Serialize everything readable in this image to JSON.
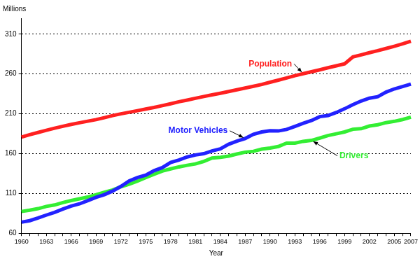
{
  "chart_data": {
    "type": "line",
    "y_label": "Millions",
    "x_label": "Year",
    "categories": [
      "1960",
      null,
      null,
      "1963",
      null,
      null,
      "1966",
      null,
      null,
      "1969",
      null,
      null,
      "1972",
      null,
      null,
      "1975",
      null,
      null,
      "1978",
      null,
      null,
      "1981",
      null,
      null,
      "1984",
      null,
      null,
      "1987",
      null,
      null,
      "1990",
      null,
      null,
      "1993",
      null,
      null,
      "1996",
      null,
      null,
      "1999",
      null,
      null,
      "2002",
      null,
      null,
      "2005",
      null,
      "2007"
    ],
    "series": [
      {
        "name": "Population",
        "color": "#ff2020",
        "values": [
          180.7,
          183.7,
          186.5,
          189.2,
          191.9,
          194.3,
          196.6,
          198.7,
          200.7,
          202.7,
          205.1,
          207.7,
          209.9,
          211.9,
          213.9,
          216.0,
          218.0,
          220.2,
          222.6,
          225.1,
          227.2,
          229.5,
          231.7,
          233.8,
          235.8,
          237.9,
          240.1,
          242.3,
          244.5,
          246.8,
          249.6,
          252.2,
          255.0,
          257.8,
          260.3,
          262.8,
          265.2,
          267.8,
          270.2,
          272.7,
          281.4,
          284.0,
          286.7,
          289.2,
          292.0,
          294.8,
          297.8,
          301.1
        ]
      },
      {
        "name": "Motor Vehicles",
        "color": "#2222ff",
        "values": [
          73.9,
          75.8,
          79.1,
          82.8,
          86.3,
          90.4,
          94.2,
          96.9,
          101.0,
          105.1,
          108.4,
          113.0,
          118.8,
          125.7,
          129.9,
          132.9,
          138.5,
          142.4,
          148.8,
          151.9,
          155.8,
          158.3,
          159.9,
          163.3,
          166.0,
          171.7,
          175.7,
          179.0,
          184.3,
          187.2,
          188.8,
          188.4,
          190.4,
          194.1,
          198.0,
          201.5,
          206.4,
          207.8,
          211.6,
          216.3,
          221.5,
          226.0,
          229.6,
          231.4,
          237.2,
          241.2,
          244.2,
          247.3
        ]
      },
      {
        "name": "Drivers",
        "color": "#33ee33",
        "values": [
          87.3,
          88.9,
          90.9,
          93.7,
          95.5,
          98.5,
          101.0,
          103.2,
          105.4,
          108.3,
          111.5,
          114.4,
          118.4,
          121.5,
          125.4,
          129.8,
          134.0,
          138.1,
          140.8,
          143.3,
          145.3,
          147.1,
          150.2,
          154.4,
          155.4,
          156.9,
          159.5,
          161.8,
          162.9,
          165.6,
          167.0,
          168.9,
          173.1,
          173.1,
          175.4,
          176.6,
          179.5,
          182.7,
          184.9,
          187.2,
          190.6,
          191.3,
          194.6,
          196.2,
          198.9,
          200.5,
          202.8,
          205.7
        ]
      }
    ],
    "ylim": [
      60,
      330
    ],
    "yticks": [
      60,
      110,
      160,
      210,
      260,
      310
    ],
    "grid": true
  }
}
